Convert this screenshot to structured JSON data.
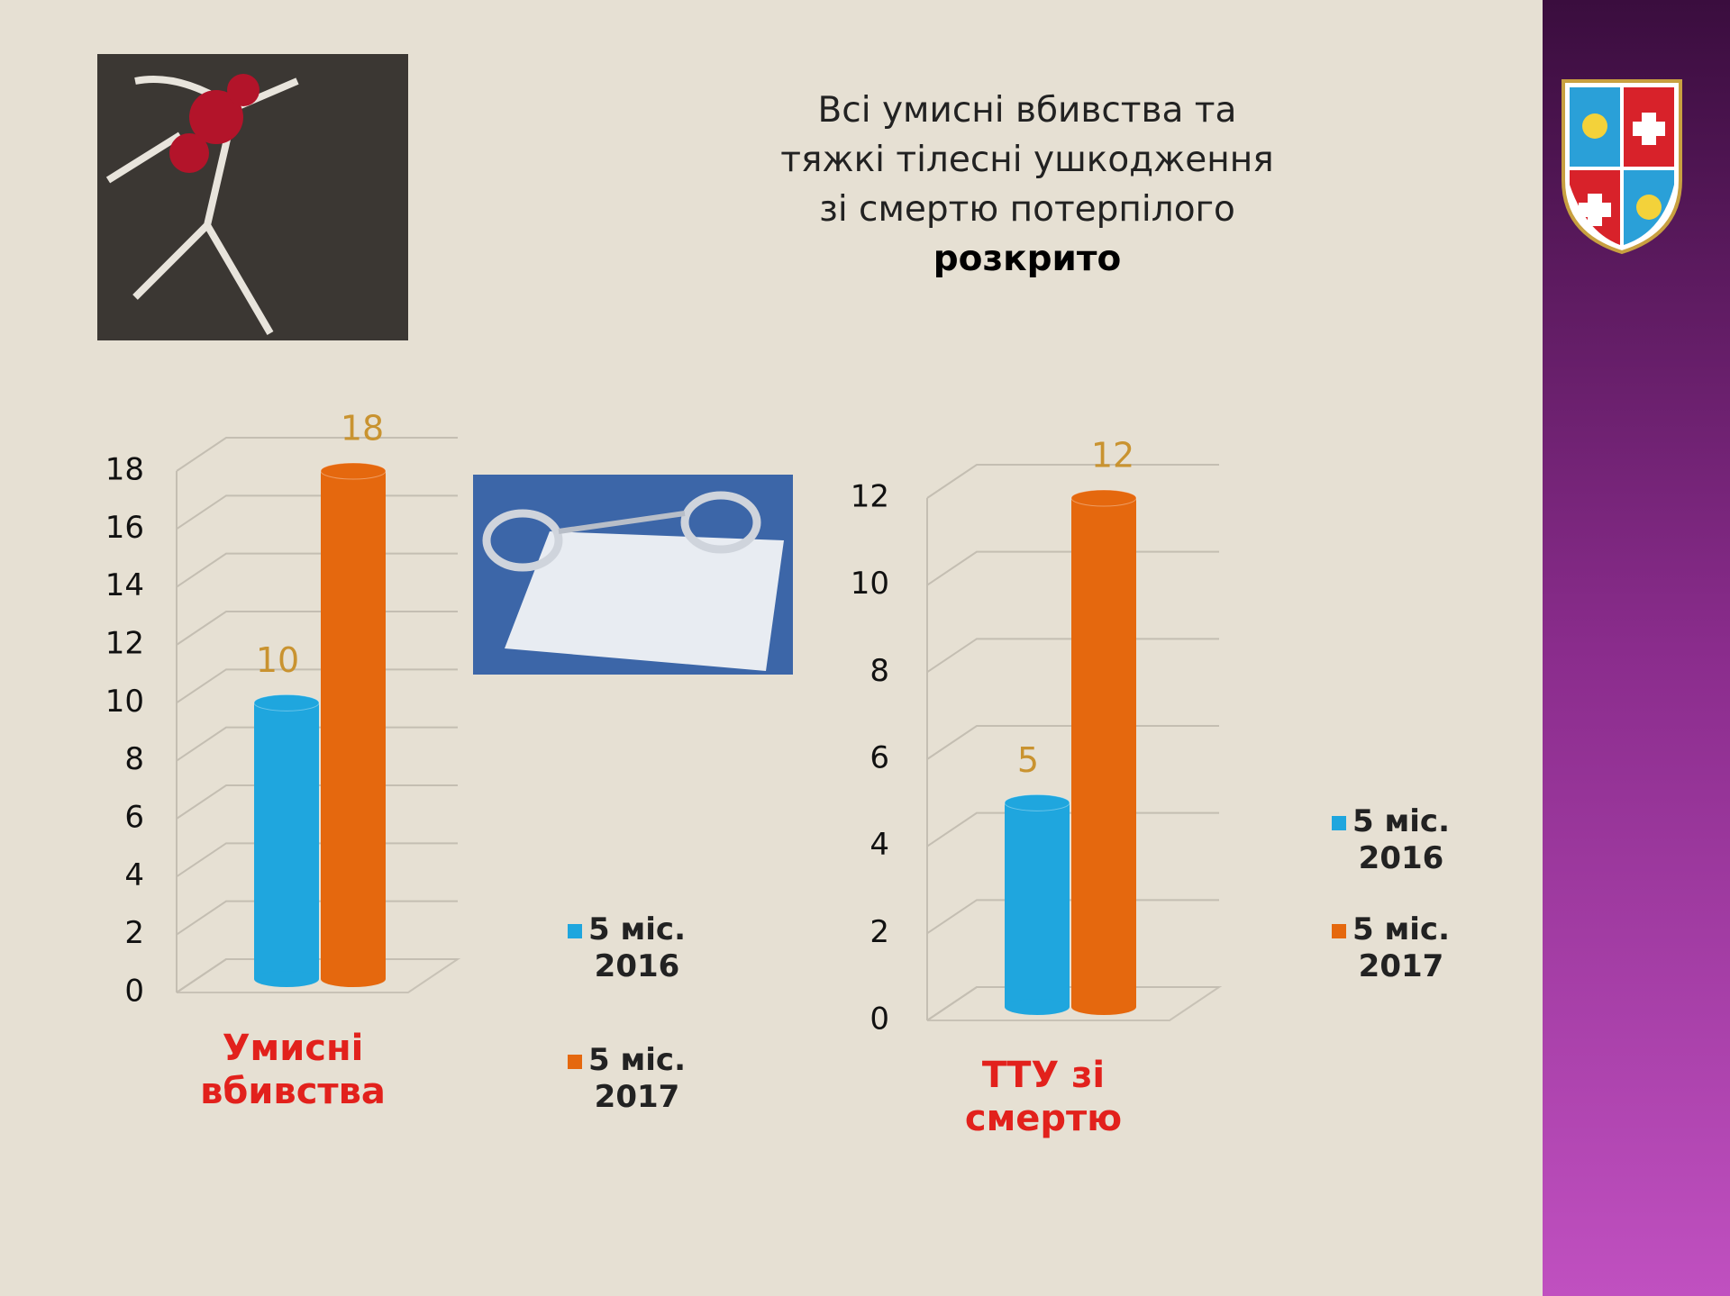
{
  "slide": {
    "title_lines": [
      "Всі умисні вбивства та",
      "тяжкі тілесні ушкодження",
      "зі смертю потерпілого",
      "розкрито"
    ]
  },
  "chart_data": [
    {
      "type": "bar",
      "categories": [
        "Умисні вбивства"
      ],
      "series": [
        {
          "name": "5 міс. 2016",
          "color": "#1fa6de",
          "values": [
            10
          ]
        },
        {
          "name": "5 міс. 2017",
          "color": "#e5680e",
          "values": [
            18
          ]
        }
      ],
      "ylim": [
        0,
        18
      ],
      "yticks": [
        0,
        2,
        4,
        6,
        8,
        10,
        12,
        14,
        16,
        18
      ],
      "grid": true
    },
    {
      "type": "bar",
      "categories": [
        "ТТУ зі смертю"
      ],
      "series": [
        {
          "name": "5 міс. 2016",
          "color": "#1fa6de",
          "values": [
            5
          ]
        },
        {
          "name": "5 міс. 2017",
          "color": "#e5680e",
          "values": [
            12
          ]
        }
      ],
      "ylim": [
        0,
        12
      ],
      "yticks": [
        0,
        2,
        4,
        6,
        8,
        10,
        12
      ],
      "grid": true
    }
  ]
}
